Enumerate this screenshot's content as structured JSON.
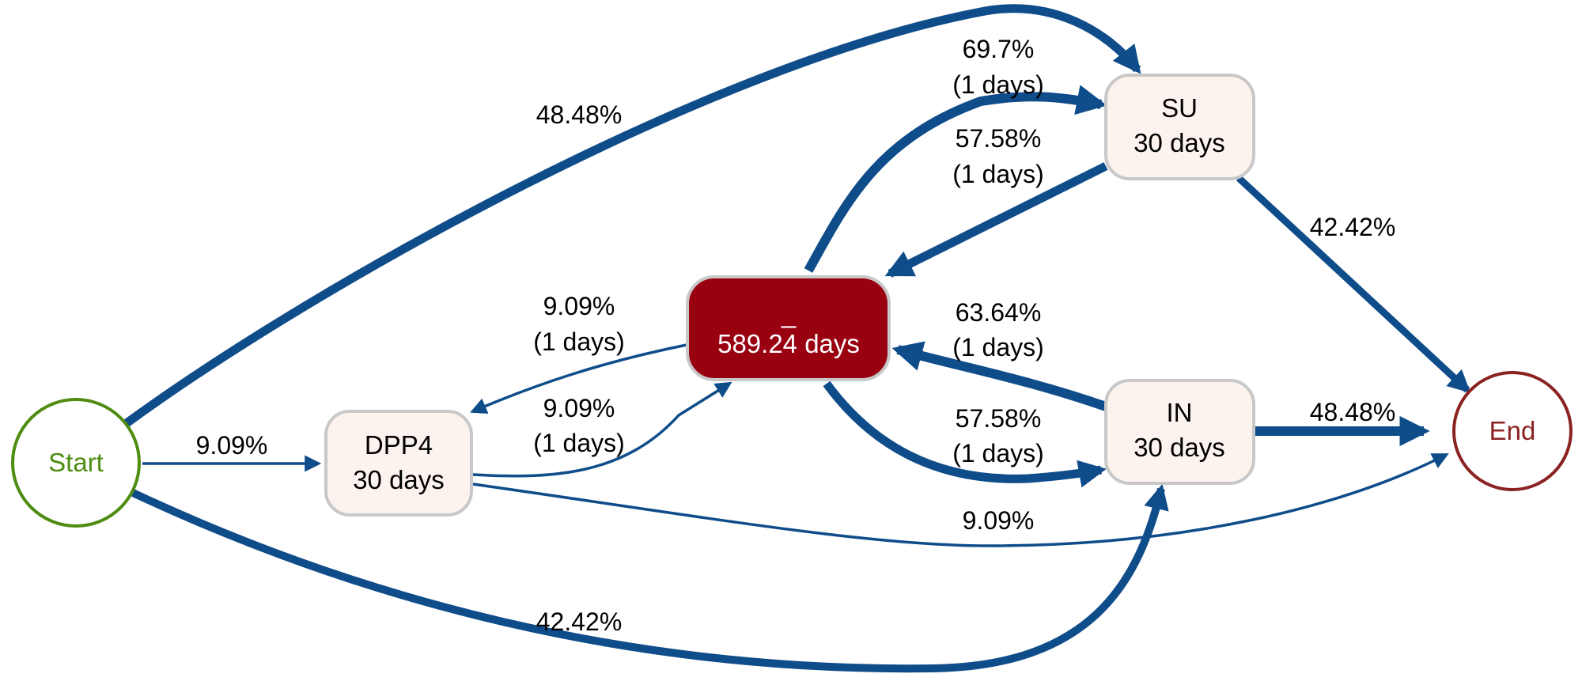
{
  "colors": {
    "edge": "#0f4c8a",
    "start": "#4e8c12",
    "end": "#8b2222",
    "box_fill": "#fdf3ee",
    "box_stroke": "#c8c8c8",
    "center_fill": "#990010",
    "center_stroke": "#c8c8c8",
    "center_text": "#ffffff"
  },
  "nodes": {
    "start": {
      "label": "Start"
    },
    "end": {
      "label": "End"
    },
    "dpp4": {
      "name": "DPP4",
      "duration": "30 days"
    },
    "su": {
      "name": "SU",
      "duration": "30 days"
    },
    "in": {
      "name": "IN",
      "duration": "30 days"
    },
    "center": {
      "name": "_",
      "duration": "589.24 days"
    }
  },
  "edges": {
    "start_su": {
      "pct": "48.48%"
    },
    "start_dpp4": {
      "pct": "9.09%"
    },
    "start_in": {
      "pct": "42.42%"
    },
    "center_su": {
      "pct": "69.7%",
      "time": "(1 days)"
    },
    "su_center": {
      "pct": "57.58%",
      "time": "(1 days)"
    },
    "su_end": {
      "pct": "42.42%"
    },
    "center_dpp4": {
      "pct": "9.09%",
      "time": "(1 days)"
    },
    "dpp4_center": {
      "pct": "9.09%",
      "time": "(1 days)"
    },
    "in_center": {
      "pct": "63.64%",
      "time": "(1 days)"
    },
    "center_in": {
      "pct": "57.58%",
      "time": "(1 days)"
    },
    "in_end": {
      "pct": "48.48%"
    },
    "dpp4_end": {
      "pct": "9.09%"
    }
  }
}
